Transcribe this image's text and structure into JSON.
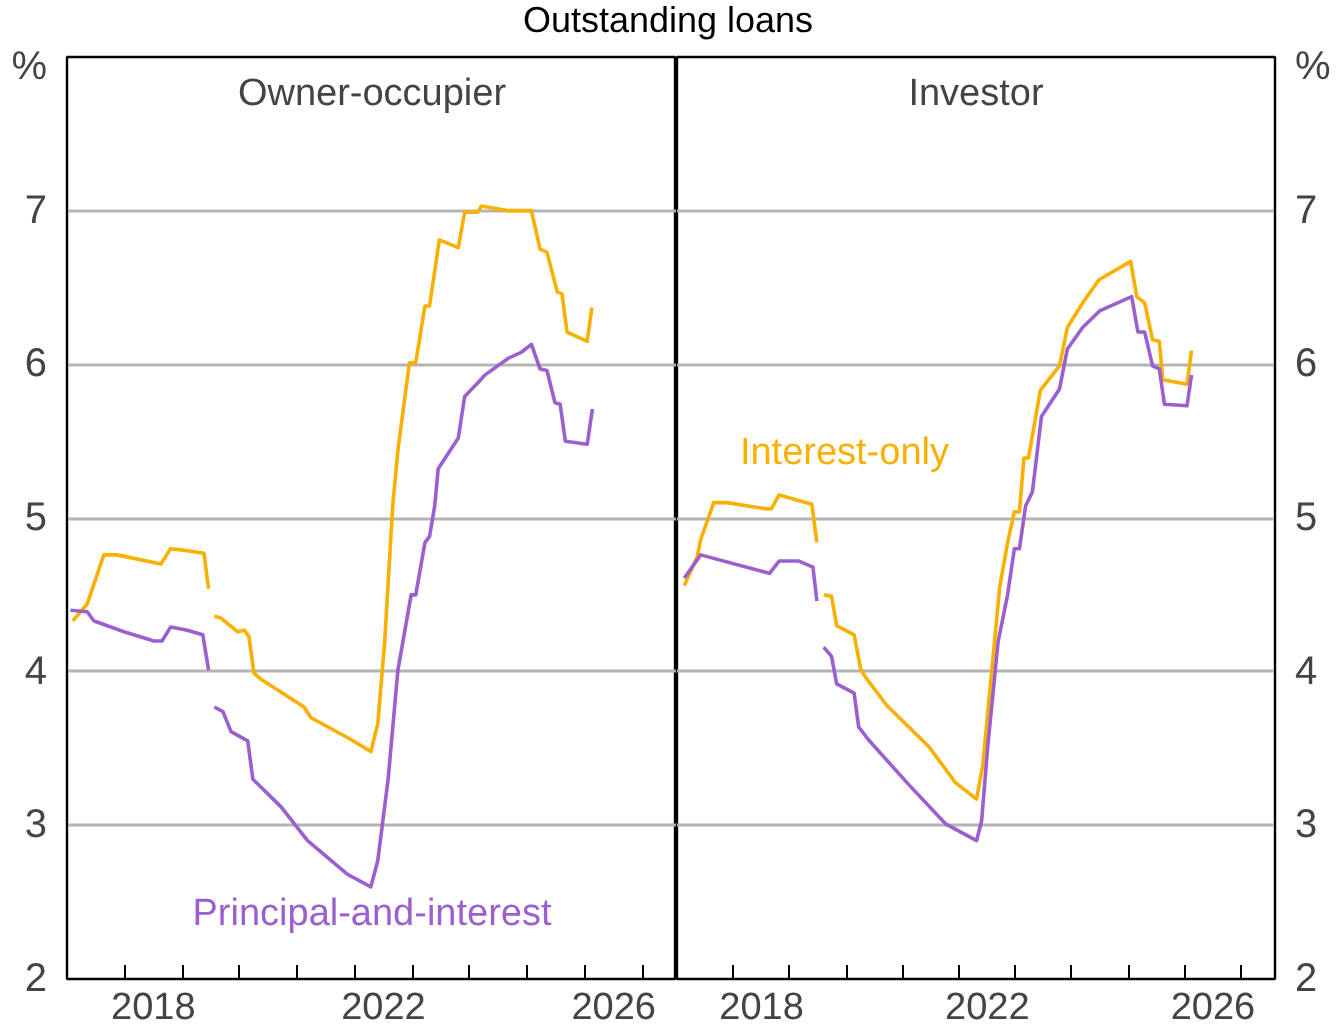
{
  "chart_data": [
    {
      "type": "line",
      "title": "Owner-occupier",
      "ylabel": "%",
      "annotations": [
        "Outstanding loans"
      ],
      "xlim": [
        2017,
        2027.6
      ],
      "ylim": [
        2,
        8
      ],
      "yticks": [
        2,
        3,
        4,
        5,
        6,
        7
      ],
      "xticks": [
        {
          "value": 2017,
          "label": null
        },
        {
          "value": 2018,
          "label": null
        },
        {
          "value": 2019,
          "label": null
        },
        {
          "value": 2020,
          "label": null
        },
        {
          "value": 2021,
          "label": null
        },
        {
          "value": 2022,
          "label": null
        },
        {
          "value": 2023,
          "label": null
        },
        {
          "value": 2024,
          "label": null
        },
        {
          "value": 2025,
          "label": null
        },
        {
          "value": 2026,
          "label": null
        },
        {
          "value": 2027,
          "label": null
        },
        {
          "value": 2018.5,
          "label": "2018"
        },
        {
          "value": 2022.5,
          "label": "2022"
        },
        {
          "value": 2026.5,
          "label": "2026"
        }
      ],
      "grid": "y",
      "series": [
        {
          "color": "#f9b000",
          "x": [
            2017.1,
            2017.35,
            2017.64,
            2017.87,
            2018.63,
            2018.8,
            2019.03,
            2019.38,
            2019.46,
            2019.51,
            2019.56,
            2019.67,
            2019.96,
            2020.08,
            2020.16,
            2020.25,
            2020.37,
            2021.12,
            2021.24,
            2021.88,
            2022.28,
            2022.4,
            2022.52,
            2022.66,
            2022.75,
            2022.95,
            2023.06,
            2023.22,
            2023.3,
            2023.47,
            2023.8,
            2023.91,
            2024.14,
            2024.2,
            2024.67,
            2025.07,
            2025.22,
            2025.34,
            2025.52,
            2025.6,
            2025.69,
            2026.04,
            2026.12
          ],
          "values": [
            4.33,
            4.44,
            4.76,
            4.76,
            4.7,
            4.8,
            4.79,
            4.77,
            4.54,
            null,
            4.36,
            4.35,
            4.26,
            4.27,
            4.23,
            3.99,
            3.95,
            3.77,
            3.7,
            3.57,
            3.48,
            3.66,
            4.19,
            5.08,
            5.44,
            6.01,
            6.01,
            6.38,
            6.38,
            6.81,
            6.76,
            6.99,
            6.99,
            7.03,
            7.0,
            7.0,
            6.75,
            6.73,
            6.47,
            6.46,
            6.21,
            6.15,
            6.37
          ]
        },
        {
          "name": "Principal-and-interest",
          "color": "#9b5fcf",
          "x": [
            2017.06,
            2017.35,
            2017.47,
            2017.99,
            2018.51,
            2018.65,
            2018.8,
            2019.09,
            2019.36,
            2019.46,
            2019.51,
            2019.56,
            2019.71,
            2019.85,
            2020.14,
            2020.23,
            2020.72,
            2021.18,
            2021.88,
            2022.28,
            2022.4,
            2022.58,
            2022.75,
            2022.98,
            2023.06,
            2023.22,
            2023.3,
            2023.39,
            2023.45,
            2023.8,
            2023.91,
            2024.14,
            2024.26,
            2024.67,
            2024.9,
            2025.07,
            2025.22,
            2025.34,
            2025.48,
            2025.57,
            2025.66,
            2026.04,
            2026.13
          ],
          "values": [
            4.4,
            4.39,
            4.33,
            4.26,
            4.2,
            4.2,
            4.29,
            4.27,
            4.24,
            4.01,
            null,
            3.77,
            3.74,
            3.61,
            3.55,
            3.3,
            3.12,
            2.9,
            2.68,
            2.6,
            2.77,
            3.3,
            4.01,
            4.5,
            4.5,
            4.84,
            4.88,
            5.08,
            5.32,
            5.52,
            5.79,
            5.88,
            5.93,
            6.04,
            6.08,
            6.13,
            5.97,
            5.96,
            5.75,
            5.74,
            5.5,
            5.48,
            5.71
          ]
        }
      ]
    },
    {
      "type": "line",
      "title": "Investor",
      "ylabel": "%",
      "xlim": [
        2017,
        2027.6
      ],
      "ylim": [
        2,
        8
      ],
      "yticks": [
        2,
        3,
        4,
        5,
        6,
        7
      ],
      "xticks": [
        {
          "value": 2017,
          "label": null
        },
        {
          "value": 2018,
          "label": null
        },
        {
          "value": 2019,
          "label": null
        },
        {
          "value": 2020,
          "label": null
        },
        {
          "value": 2021,
          "label": null
        },
        {
          "value": 2022,
          "label": null
        },
        {
          "value": 2023,
          "label": null
        },
        {
          "value": 2024,
          "label": null
        },
        {
          "value": 2025,
          "label": null
        },
        {
          "value": 2026,
          "label": null
        },
        {
          "value": 2027,
          "label": null
        },
        {
          "value": 2018.5,
          "label": "2018"
        },
        {
          "value": 2022.5,
          "label": "2022"
        },
        {
          "value": 2026.5,
          "label": "2026"
        }
      ],
      "grid": "y",
      "series": [
        {
          "name": "Interest-only",
          "color": "#f9b000",
          "x": [
            2017.13,
            2017.25,
            2017.36,
            2017.42,
            2017.65,
            2017.88,
            2018.58,
            2018.67,
            2018.81,
            2019.39,
            2019.48,
            2019.54,
            2019.6,
            2019.74,
            2019.83,
            2020.14,
            2020.26,
            2020.41,
            2020.72,
            2021.47,
            2021.93,
            2022.31,
            2022.42,
            2022.57,
            2022.72,
            2022.86,
            2022.98,
            2023.07,
            2023.15,
            2023.23,
            2023.44,
            2023.78,
            2023.92,
            2024.19,
            2024.48,
            2025.04,
            2025.15,
            2025.29,
            2025.43,
            2025.55,
            2025.61,
            2026.04,
            2026.12
          ],
          "values": [
            4.56,
            4.66,
            4.75,
            4.86,
            5.1,
            5.1,
            5.06,
            5.06,
            5.15,
            5.09,
            4.84,
            null,
            4.5,
            4.49,
            4.3,
            4.24,
            4.01,
            3.93,
            3.78,
            3.51,
            3.28,
            3.17,
            3.39,
            3.97,
            4.55,
            4.84,
            5.04,
            5.04,
            5.39,
            5.39,
            5.83,
            5.99,
            6.24,
            6.4,
            6.55,
            6.67,
            6.44,
            6.4,
            6.16,
            6.15,
            5.9,
            5.87,
            6.09
          ]
        },
        {
          "color": "#9b5fcf",
          "x": [
            2017.13,
            2017.42,
            2018.64,
            2018.81,
            2019.16,
            2019.41,
            2019.48,
            2019.54,
            2019.6,
            2019.74,
            2019.83,
            2020.14,
            2020.22,
            2020.41,
            2021.12,
            2021.76,
            2022.31,
            2022.4,
            2022.51,
            2022.69,
            2022.86,
            2022.98,
            2023.07,
            2023.18,
            2023.3,
            2023.46,
            2023.78,
            2023.92,
            2024.19,
            2024.5,
            2025.06,
            2025.17,
            2025.29,
            2025.43,
            2025.55,
            2025.64,
            2026.04,
            2026.12
          ],
          "values": [
            4.61,
            4.76,
            4.64,
            4.72,
            4.72,
            4.68,
            4.46,
            null,
            4.16,
            4.1,
            3.92,
            3.86,
            3.64,
            3.55,
            3.26,
            3.01,
            2.9,
            3.03,
            3.52,
            4.19,
            4.5,
            4.8,
            4.8,
            5.08,
            5.17,
            5.66,
            5.84,
            6.1,
            6.24,
            6.35,
            6.44,
            6.21,
            6.21,
            5.99,
            5.97,
            5.74,
            5.73,
            5.93
          ]
        }
      ]
    }
  ]
}
